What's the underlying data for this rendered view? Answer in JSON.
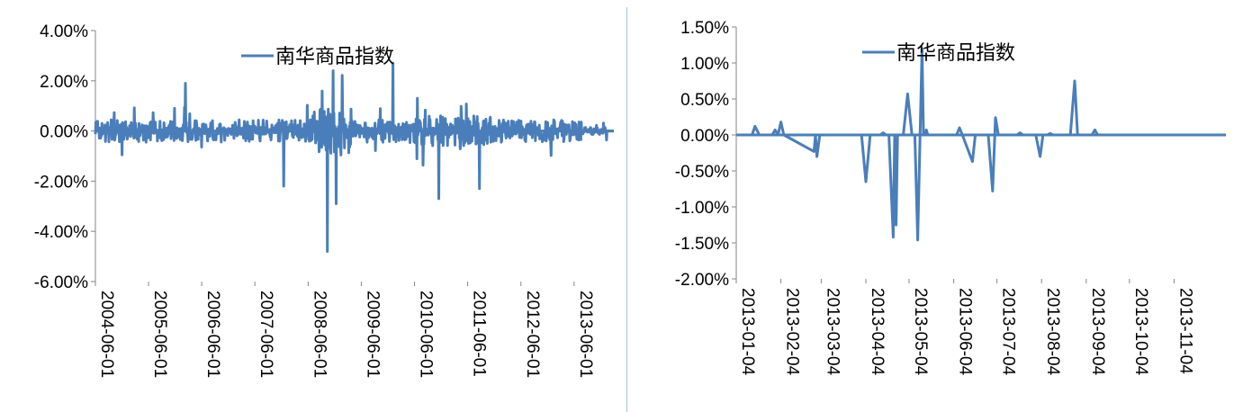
{
  "chart_data": [
    {
      "type": "line",
      "legend": {
        "label": "南华商品指数",
        "placement": "top-center"
      },
      "series": [
        {
          "name": "南华商品指数",
          "color": "#4a7ebb"
        }
      ],
      "y_ticks": [
        "4.00%",
        "2.00%",
        "0.00%",
        "-2.00%",
        "-4.00%",
        "-6.00%"
      ],
      "ylim": [
        -0.06,
        0.04
      ],
      "x_ticks": [
        "2004-06-01",
        "2005-06-01",
        "2006-06-01",
        "2007-06-01",
        "2008-06-01",
        "2009-06-01",
        "2010-06-01",
        "2011-06-01",
        "2012-06-01",
        "2013-06-01"
      ],
      "x_range": [
        "2004-06-01",
        "2014-03-01"
      ],
      "highlights": [
        {
          "x": "2008-10-10",
          "y": -0.048
        },
        {
          "x": "2008-11-20",
          "y": 0.024
        },
        {
          "x": "2008-12-10",
          "y": -0.029
        },
        {
          "x": "2010-01-05",
          "y": 0.027
        },
        {
          "x": "2010-11-15",
          "y": -0.027
        },
        {
          "x": "2011-08-20",
          "y": -0.023
        },
        {
          "x": "2006-02-10",
          "y": 0.019
        },
        {
          "x": "2007-12-15",
          "y": -0.022
        }
      ]
    },
    {
      "type": "line",
      "legend": {
        "label": "南华商品指数",
        "placement": "top-center"
      },
      "series": [
        {
          "name": "南华商品指数",
          "color": "#4a7ebb"
        }
      ],
      "y_ticks": [
        "1.50%",
        "1.00%",
        "0.50%",
        "0.00%",
        "-0.50%",
        "-1.00%",
        "-1.50%",
        "-2.00%"
      ],
      "ylim": [
        -0.02,
        0.015
      ],
      "x_ticks": [
        "2013-01-04",
        "2013-02-04",
        "2013-03-04",
        "2013-04-04",
        "2013-05-04",
        "2013-06-04",
        "2013-07-04",
        "2013-08-04",
        "2013-09-04",
        "2013-10-04",
        "2013-11-04"
      ],
      "x_range": [
        "2013-01-04",
        "2013-12-10"
      ],
      "points": [
        {
          "x": "2013-01-04",
          "y": 0
        },
        {
          "x": "2013-01-15",
          "y": 0
        },
        {
          "x": "2013-01-17",
          "y": 0.0012
        },
        {
          "x": "2013-01-20",
          "y": 0
        },
        {
          "x": "2013-01-29",
          "y": 0
        },
        {
          "x": "2013-01-31",
          "y": 0.0007
        },
        {
          "x": "2013-02-02",
          "y": 0
        },
        {
          "x": "2013-02-04",
          "y": 0.0018
        },
        {
          "x": "2013-02-06",
          "y": 0
        },
        {
          "x": "2013-02-27",
          "y": -0.0023
        },
        {
          "x": "2013-02-28",
          "y": 0
        },
        {
          "x": "2013-03-01",
          "y": -0.003
        },
        {
          "x": "2013-03-03",
          "y": 0
        },
        {
          "x": "2013-04-01",
          "y": 0
        },
        {
          "x": "2013-04-04",
          "y": -0.0065
        },
        {
          "x": "2013-04-07",
          "y": 0
        },
        {
          "x": "2013-04-14",
          "y": 0
        },
        {
          "x": "2013-04-16",
          "y": 0.0003
        },
        {
          "x": "2013-04-18",
          "y": 0
        },
        {
          "x": "2013-04-20",
          "y": 0
        },
        {
          "x": "2013-04-23",
          "y": -0.0142
        },
        {
          "x": "2013-04-24",
          "y": 0
        },
        {
          "x": "2013-04-25",
          "y": -0.0125
        },
        {
          "x": "2013-04-26",
          "y": 0
        },
        {
          "x": "2013-04-30",
          "y": 0
        },
        {
          "x": "2013-05-03",
          "y": 0.0057
        },
        {
          "x": "2013-05-06",
          "y": 0
        },
        {
          "x": "2013-05-08",
          "y": 0
        },
        {
          "x": "2013-05-10",
          "y": -0.0146
        },
        {
          "x": "2013-05-13",
          "y": 0.012
        },
        {
          "x": "2013-05-14",
          "y": 0
        },
        {
          "x": "2013-05-15",
          "y": 0
        },
        {
          "x": "2013-05-16",
          "y": 0.0007
        },
        {
          "x": "2013-05-17",
          "y": 0
        },
        {
          "x": "2013-06-06",
          "y": 0
        },
        {
          "x": "2013-06-08",
          "y": 0.001
        },
        {
          "x": "2013-06-10",
          "y": 0
        },
        {
          "x": "2013-06-17",
          "y": -0.0037
        },
        {
          "x": "2013-06-19",
          "y": 0
        },
        {
          "x": "2013-06-28",
          "y": 0
        },
        {
          "x": "2013-07-01",
          "y": -0.0078
        },
        {
          "x": "2013-07-03",
          "y": 0.0024
        },
        {
          "x": "2013-07-05",
          "y": 0
        },
        {
          "x": "2013-07-18",
          "y": 0
        },
        {
          "x": "2013-07-20",
          "y": 0.0003
        },
        {
          "x": "2013-07-22",
          "y": 0
        },
        {
          "x": "2013-07-31",
          "y": 0
        },
        {
          "x": "2013-08-03",
          "y": -0.003
        },
        {
          "x": "2013-08-05",
          "y": 0
        },
        {
          "x": "2013-08-08",
          "y": 0
        },
        {
          "x": "2013-08-10",
          "y": 0.0002
        },
        {
          "x": "2013-08-12",
          "y": 0
        },
        {
          "x": "2013-08-24",
          "y": 0
        },
        {
          "x": "2013-08-27",
          "y": 0.0075
        },
        {
          "x": "2013-08-29",
          "y": 0
        },
        {
          "x": "2013-09-08",
          "y": 0
        },
        {
          "x": "2013-09-10",
          "y": 0.0007
        },
        {
          "x": "2013-09-12",
          "y": 0
        },
        {
          "x": "2013-12-10",
          "y": 0
        }
      ]
    }
  ]
}
